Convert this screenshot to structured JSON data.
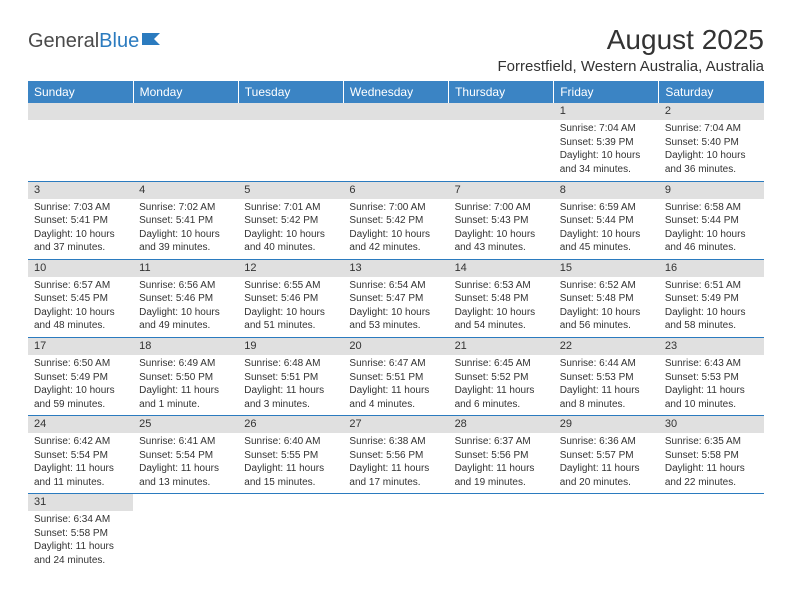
{
  "logo": {
    "text_a": "General",
    "text_b": "Blue"
  },
  "title": "August 2025",
  "location": "Forrestfield, Western Australia, Australia",
  "colors": {
    "header_bg": "#3b84c4",
    "header_text": "#ffffff",
    "daynum_bg": "#e0e0e0",
    "border": "#2b7bbf",
    "text": "#333333",
    "logo_gray": "#4a4a4a",
    "logo_blue": "#2b7bbf"
  },
  "day_headers": [
    "Sunday",
    "Monday",
    "Tuesday",
    "Wednesday",
    "Thursday",
    "Friday",
    "Saturday"
  ],
  "weeks": [
    [
      null,
      null,
      null,
      null,
      null,
      {
        "n": "1",
        "sr": "Sunrise: 7:04 AM",
        "ss": "Sunset: 5:39 PM",
        "d1": "Daylight: 10 hours",
        "d2": "and 34 minutes."
      },
      {
        "n": "2",
        "sr": "Sunrise: 7:04 AM",
        "ss": "Sunset: 5:40 PM",
        "d1": "Daylight: 10 hours",
        "d2": "and 36 minutes."
      }
    ],
    [
      {
        "n": "3",
        "sr": "Sunrise: 7:03 AM",
        "ss": "Sunset: 5:41 PM",
        "d1": "Daylight: 10 hours",
        "d2": "and 37 minutes."
      },
      {
        "n": "4",
        "sr": "Sunrise: 7:02 AM",
        "ss": "Sunset: 5:41 PM",
        "d1": "Daylight: 10 hours",
        "d2": "and 39 minutes."
      },
      {
        "n": "5",
        "sr": "Sunrise: 7:01 AM",
        "ss": "Sunset: 5:42 PM",
        "d1": "Daylight: 10 hours",
        "d2": "and 40 minutes."
      },
      {
        "n": "6",
        "sr": "Sunrise: 7:00 AM",
        "ss": "Sunset: 5:42 PM",
        "d1": "Daylight: 10 hours",
        "d2": "and 42 minutes."
      },
      {
        "n": "7",
        "sr": "Sunrise: 7:00 AM",
        "ss": "Sunset: 5:43 PM",
        "d1": "Daylight: 10 hours",
        "d2": "and 43 minutes."
      },
      {
        "n": "8",
        "sr": "Sunrise: 6:59 AM",
        "ss": "Sunset: 5:44 PM",
        "d1": "Daylight: 10 hours",
        "d2": "and 45 minutes."
      },
      {
        "n": "9",
        "sr": "Sunrise: 6:58 AM",
        "ss": "Sunset: 5:44 PM",
        "d1": "Daylight: 10 hours",
        "d2": "and 46 minutes."
      }
    ],
    [
      {
        "n": "10",
        "sr": "Sunrise: 6:57 AM",
        "ss": "Sunset: 5:45 PM",
        "d1": "Daylight: 10 hours",
        "d2": "and 48 minutes."
      },
      {
        "n": "11",
        "sr": "Sunrise: 6:56 AM",
        "ss": "Sunset: 5:46 PM",
        "d1": "Daylight: 10 hours",
        "d2": "and 49 minutes."
      },
      {
        "n": "12",
        "sr": "Sunrise: 6:55 AM",
        "ss": "Sunset: 5:46 PM",
        "d1": "Daylight: 10 hours",
        "d2": "and 51 minutes."
      },
      {
        "n": "13",
        "sr": "Sunrise: 6:54 AM",
        "ss": "Sunset: 5:47 PM",
        "d1": "Daylight: 10 hours",
        "d2": "and 53 minutes."
      },
      {
        "n": "14",
        "sr": "Sunrise: 6:53 AM",
        "ss": "Sunset: 5:48 PM",
        "d1": "Daylight: 10 hours",
        "d2": "and 54 minutes."
      },
      {
        "n": "15",
        "sr": "Sunrise: 6:52 AM",
        "ss": "Sunset: 5:48 PM",
        "d1": "Daylight: 10 hours",
        "d2": "and 56 minutes."
      },
      {
        "n": "16",
        "sr": "Sunrise: 6:51 AM",
        "ss": "Sunset: 5:49 PM",
        "d1": "Daylight: 10 hours",
        "d2": "and 58 minutes."
      }
    ],
    [
      {
        "n": "17",
        "sr": "Sunrise: 6:50 AM",
        "ss": "Sunset: 5:49 PM",
        "d1": "Daylight: 10 hours",
        "d2": "and 59 minutes."
      },
      {
        "n": "18",
        "sr": "Sunrise: 6:49 AM",
        "ss": "Sunset: 5:50 PM",
        "d1": "Daylight: 11 hours",
        "d2": "and 1 minute."
      },
      {
        "n": "19",
        "sr": "Sunrise: 6:48 AM",
        "ss": "Sunset: 5:51 PM",
        "d1": "Daylight: 11 hours",
        "d2": "and 3 minutes."
      },
      {
        "n": "20",
        "sr": "Sunrise: 6:47 AM",
        "ss": "Sunset: 5:51 PM",
        "d1": "Daylight: 11 hours",
        "d2": "and 4 minutes."
      },
      {
        "n": "21",
        "sr": "Sunrise: 6:45 AM",
        "ss": "Sunset: 5:52 PM",
        "d1": "Daylight: 11 hours",
        "d2": "and 6 minutes."
      },
      {
        "n": "22",
        "sr": "Sunrise: 6:44 AM",
        "ss": "Sunset: 5:53 PM",
        "d1": "Daylight: 11 hours",
        "d2": "and 8 minutes."
      },
      {
        "n": "23",
        "sr": "Sunrise: 6:43 AM",
        "ss": "Sunset: 5:53 PM",
        "d1": "Daylight: 11 hours",
        "d2": "and 10 minutes."
      }
    ],
    [
      {
        "n": "24",
        "sr": "Sunrise: 6:42 AM",
        "ss": "Sunset: 5:54 PM",
        "d1": "Daylight: 11 hours",
        "d2": "and 11 minutes."
      },
      {
        "n": "25",
        "sr": "Sunrise: 6:41 AM",
        "ss": "Sunset: 5:54 PM",
        "d1": "Daylight: 11 hours",
        "d2": "and 13 minutes."
      },
      {
        "n": "26",
        "sr": "Sunrise: 6:40 AM",
        "ss": "Sunset: 5:55 PM",
        "d1": "Daylight: 11 hours",
        "d2": "and 15 minutes."
      },
      {
        "n": "27",
        "sr": "Sunrise: 6:38 AM",
        "ss": "Sunset: 5:56 PM",
        "d1": "Daylight: 11 hours",
        "d2": "and 17 minutes."
      },
      {
        "n": "28",
        "sr": "Sunrise: 6:37 AM",
        "ss": "Sunset: 5:56 PM",
        "d1": "Daylight: 11 hours",
        "d2": "and 19 minutes."
      },
      {
        "n": "29",
        "sr": "Sunrise: 6:36 AM",
        "ss": "Sunset: 5:57 PM",
        "d1": "Daylight: 11 hours",
        "d2": "and 20 minutes."
      },
      {
        "n": "30",
        "sr": "Sunrise: 6:35 AM",
        "ss": "Sunset: 5:58 PM",
        "d1": "Daylight: 11 hours",
        "d2": "and 22 minutes."
      }
    ],
    [
      {
        "n": "31",
        "sr": "Sunrise: 6:34 AM",
        "ss": "Sunset: 5:58 PM",
        "d1": "Daylight: 11 hours",
        "d2": "and 24 minutes."
      },
      null,
      null,
      null,
      null,
      null,
      null
    ]
  ]
}
